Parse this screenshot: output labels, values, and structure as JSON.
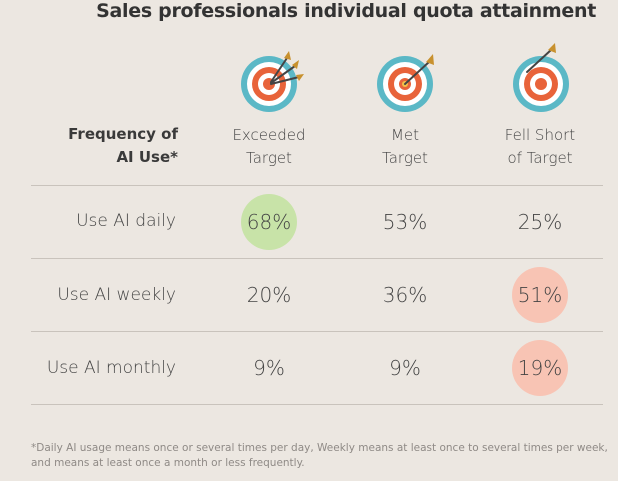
{
  "title": "Sales professionals individual quota attainment",
  "row_header": {
    "line1": "Frequency of",
    "line2": "AI Use*"
  },
  "columns": [
    {
      "line1": "Exceeded",
      "line2": "Target",
      "icon": "target-three-darts-icon"
    },
    {
      "line1": "Met",
      "line2": "Target",
      "icon": "target-bullseye-dart-icon"
    },
    {
      "line1": "Fell Short",
      "line2": "of Target",
      "icon": "target-missed-dart-icon"
    }
  ],
  "rows": [
    {
      "label": "Use AI daily",
      "values": [
        "68%",
        "53%",
        "25%"
      ],
      "highlights": [
        "green",
        "none",
        "none"
      ]
    },
    {
      "label": "Use AI weekly",
      "values": [
        "20%",
        "36%",
        "51%"
      ],
      "highlights": [
        "none",
        "none",
        "red"
      ]
    },
    {
      "label": "Use AI monthly",
      "values": [
        "9%",
        "9%",
        "19%"
      ],
      "highlights": [
        "none",
        "none",
        "red"
      ]
    }
  ],
  "footnote": {
    "line1": "*Daily AI usage means once or several times per day, Weekly means at least once to several times per week,",
    "line2": "and means at least once a month or less frequently."
  },
  "colors": {
    "background": "#ece7e1",
    "highlight_green": "#c8e3a8",
    "highlight_red": "#f8c4b4",
    "target_ring": "#5bb8c6",
    "target_orange": "#e8633a",
    "dart_gold": "#c8912e"
  },
  "chart_data": {
    "type": "table",
    "title": "Sales professionals individual quota attainment",
    "row_header": "Frequency of AI Use*",
    "columns": [
      "Exceeded Target",
      "Met Target",
      "Fell Short of Target"
    ],
    "rows": [
      "Use AI daily",
      "Use AI weekly",
      "Use AI monthly"
    ],
    "values": [
      [
        68,
        53,
        25
      ],
      [
        20,
        36,
        51
      ],
      [
        9,
        9,
        19
      ]
    ],
    "unit": "%"
  }
}
